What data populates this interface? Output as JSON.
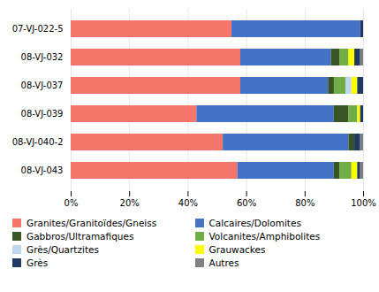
{
  "chart_data": {
    "type": "bar",
    "orientation": "horizontal",
    "stacked": true,
    "categories": [
      "07-VJ-022-5",
      "08-VJ-032",
      "08-VJ-037",
      "08-VJ-039",
      "08-VJ-040-2",
      "08-VJ-043"
    ],
    "series": [
      {
        "name": "Granites/Granitoïdes/Gneiss",
        "color": "#f4766a",
        "values": [
          55,
          58,
          58,
          43,
          52,
          57
        ]
      },
      {
        "name": "Calcaires/Dolomites",
        "color": "#4472c4",
        "values": [
          44,
          31,
          30,
          47,
          43,
          33
        ]
      },
      {
        "name": "Gabbros/Ultramafiques",
        "color": "#375623",
        "values": [
          0,
          3,
          2,
          5,
          2,
          2
        ]
      },
      {
        "name": "Volcanites/Amphibolites",
        "color": "#70ad47",
        "values": [
          0,
          3,
          4,
          3,
          0,
          4
        ]
      },
      {
        "name": "Grès/Quartzites",
        "color": "#bdd7ee",
        "values": [
          0,
          0,
          2,
          0,
          0,
          0
        ]
      },
      {
        "name": "Grauwackes",
        "color": "#ffff00",
        "values": [
          0,
          2,
          2,
          1,
          0,
          2
        ]
      },
      {
        "name": "Grès",
        "color": "#1f3864",
        "values": [
          1,
          2,
          2,
          1,
          2,
          1
        ]
      },
      {
        "name": "Autres",
        "color": "#808080",
        "values": [
          0,
          1,
          0,
          0,
          1,
          1
        ]
      }
    ],
    "xlim": [
      0,
      100
    ],
    "xticks": [
      {
        "value": 0,
        "label": "0%"
      },
      {
        "value": 20,
        "label": "20%"
      },
      {
        "value": 40,
        "label": "40%"
      },
      {
        "value": 60,
        "label": "60%"
      },
      {
        "value": 80,
        "label": "80%"
      },
      {
        "value": 100,
        "label": "100%"
      }
    ],
    "grid": true,
    "legend": "bottom"
  }
}
